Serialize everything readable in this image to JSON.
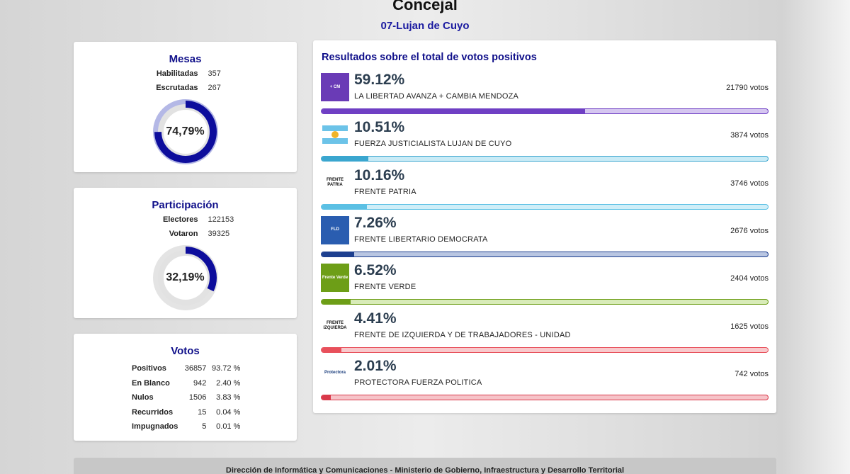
{
  "header": {
    "title": "Concejal",
    "subtitle": "07-Lujan de Cuyo"
  },
  "mesas": {
    "title": "Mesas",
    "rows": [
      {
        "label": "Habilitadas",
        "value": "357"
      },
      {
        "label": "Escrutadas",
        "value": "267"
      }
    ],
    "percent_label": "74,79%",
    "percent": 74.79
  },
  "participacion": {
    "title": "Participación",
    "rows": [
      {
        "label": "Electores",
        "value": "122153"
      },
      {
        "label": "Votaron",
        "value": "39325"
      }
    ],
    "percent_label": "32,19%",
    "percent": 32.19
  },
  "votos": {
    "title": "Votos",
    "rows": [
      {
        "label": "Positivos",
        "count": "36857",
        "pct": "93.72 %"
      },
      {
        "label": "En Blanco",
        "count": "942",
        "pct": "2.40 %"
      },
      {
        "label": "Nulos",
        "count": "1506",
        "pct": "3.83 %"
      },
      {
        "label": "Recurridos",
        "count": "15",
        "pct": "0.04 %"
      },
      {
        "label": "Impugnados",
        "count": "5",
        "pct": "0.01 %"
      }
    ]
  },
  "results": {
    "title": "Resultados sobre el total de votos positivos",
    "parties": [
      {
        "pct_label": "59.12%",
        "pct": 59.12,
        "name": "LA LIBERTAD AVANZA + CAMBIA MENDOZA",
        "votes": "21790 votos",
        "color": "#6f3fc4",
        "track": "#d5c6f0",
        "logo_bg": "#6a3bb6",
        "logo_text": "+ CM",
        "logo_fg": "#ffffff",
        "icon": "lla-logo-icon"
      },
      {
        "pct_label": "10.51%",
        "pct": 10.51,
        "name": "FUERZA JUSTICIALISTA LUJAN DE CUYO",
        "votes": "3874 votos",
        "color": "#3aa6cf",
        "track": "#c9ebf6",
        "logo_bg": "#ffffff",
        "logo_text": "",
        "logo_fg": "#3aa6cf",
        "icon": "flag-logo-icon"
      },
      {
        "pct_label": "10.16%",
        "pct": 10.16,
        "name": "FRENTE PATRIA",
        "votes": "3746 votos",
        "color": "#5bc0e4",
        "track": "#cfeef8",
        "logo_bg": "#ffffff",
        "logo_text": "FRENTE PATRIA",
        "logo_fg": "#111111",
        "icon": "frente-patria-logo-icon"
      },
      {
        "pct_label": "7.26%",
        "pct": 7.26,
        "name": "FRENTE LIBERTARIO DEMOCRATA",
        "votes": "2676 votos",
        "color": "#1d3f8f",
        "track": "#b9c6e2",
        "logo_bg": "#2a5db0",
        "logo_text": "FLD",
        "logo_fg": "#ffffff",
        "icon": "fld-logo-icon"
      },
      {
        "pct_label": "6.52%",
        "pct": 6.52,
        "name": "FRENTE VERDE",
        "votes": "2404 votos",
        "color": "#6d9e17",
        "track": "#d8ebb8",
        "logo_bg": "#6d9e17",
        "logo_text": "Frente Verde",
        "logo_fg": "#ffffff",
        "icon": "frente-verde-logo-icon"
      },
      {
        "pct_label": "4.41%",
        "pct": 4.41,
        "name": "FRENTE DE IZQUIERDA Y DE TRABAJADORES - UNIDAD",
        "votes": "1625 votos",
        "color": "#e8505b",
        "track": "#f8c9cc",
        "logo_bg": "#ffffff",
        "logo_text": "FRENTE IZQUIERDA",
        "logo_fg": "#111111",
        "icon": "fit-logo-icon"
      },
      {
        "pct_label": "2.01%",
        "pct": 2.01,
        "name": "PROTECTORA FUERZA POLITICA",
        "votes": "742 votos",
        "color": "#d9394a",
        "track": "#f6c3c8",
        "logo_bg": "#ffffff",
        "logo_text": "Protectora",
        "logo_fg": "#1a3d7c",
        "icon": "protectora-logo-icon"
      }
    ]
  },
  "footer": {
    "text": "Dirección de Informática y Comunicaciones - Ministerio de Gobierno, Infraestructura y Desarrollo Territorial"
  }
}
